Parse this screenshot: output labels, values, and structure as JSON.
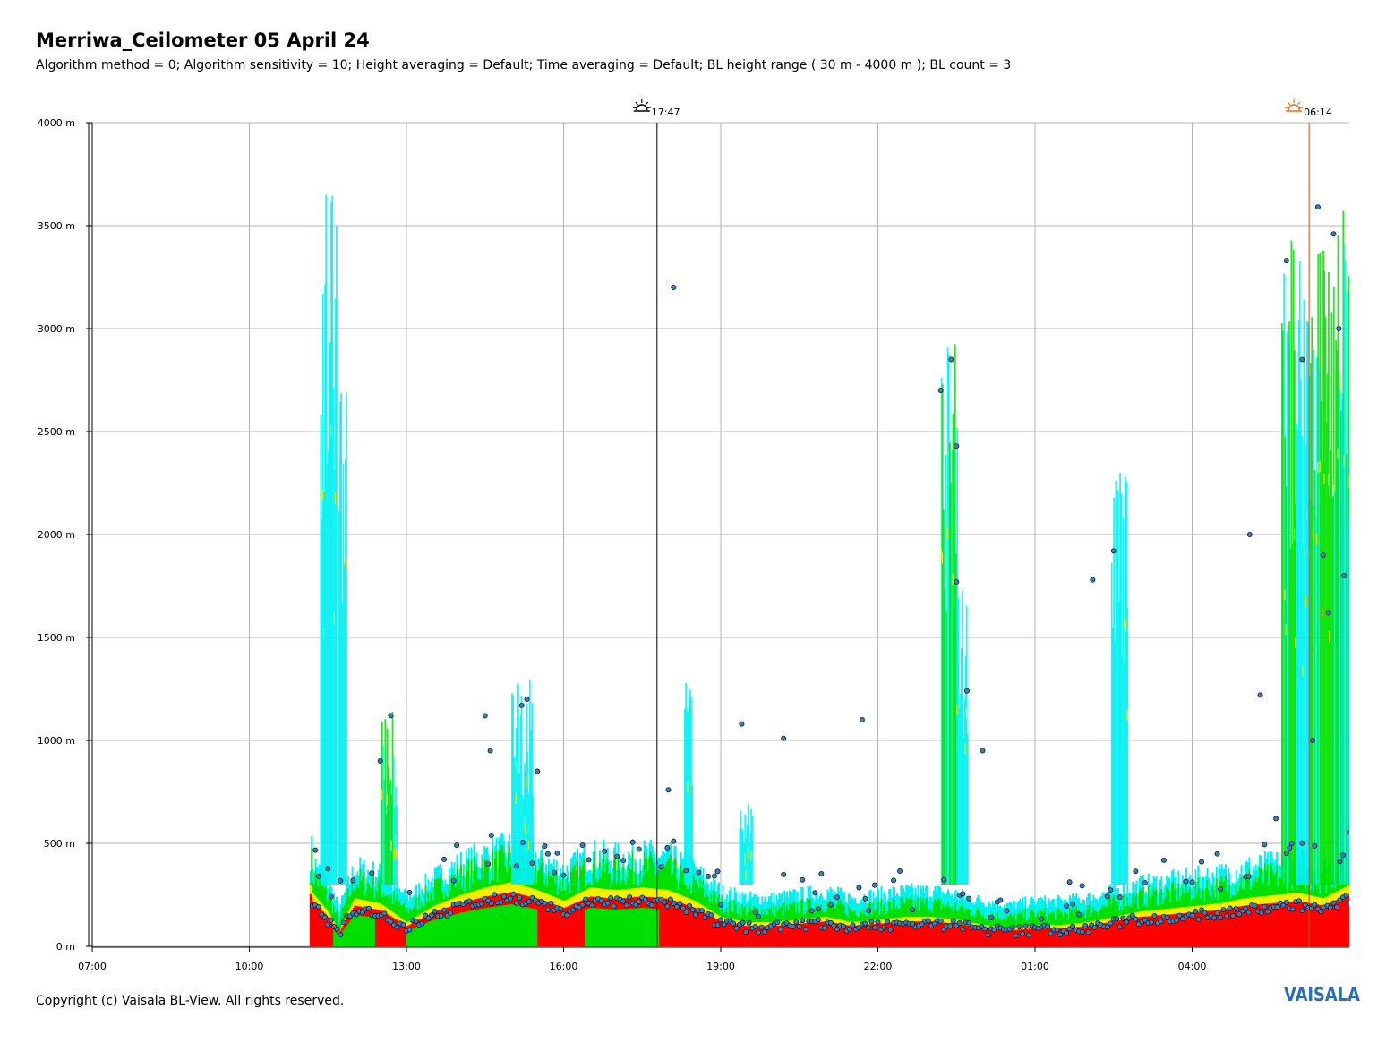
{
  "header": {
    "title": "Merriwa_Ceilometer 05 April 24",
    "subtitle": "Algorithm method = 0; Algorithm sensitivity = 10; Height averaging = Default; Time averaging = Default; BL height range ( 30 m - 4000 m ); BL count = 3"
  },
  "footer": {
    "copyright": "Copyright (c) Vaisala BL-View. All rights reserved.",
    "logo": "VAISALA"
  },
  "chart_data": {
    "type": "heatmap",
    "title": "Merriwa_Ceilometer 05 April 24",
    "xlabel": "",
    "ylabel": "",
    "x_range_hours": [
      7.0,
      31.0
    ],
    "x_ticks": [
      "07:00",
      "10:00",
      "13:00",
      "16:00",
      "19:00",
      "22:00",
      "01:00",
      "04:00"
    ],
    "y_ticks": [
      "0 m",
      "500 m",
      "1000 m",
      "1500 m",
      "2000 m",
      "2500 m",
      "3000 m",
      "3500 m",
      "4000 m"
    ],
    "ylim": [
      0,
      4000
    ],
    "grid": true,
    "colors": {
      "strong": "#ff0000",
      "high": "#ffb000",
      "mid": "#f0f000",
      "low": "#00e000",
      "weak": "#00f0f0",
      "sunset_line": "#000000",
      "sunrise_line": "#c05010",
      "marker_fill": "#3a7fb8"
    },
    "events": [
      {
        "name": "sunset",
        "time": "17:47",
        "hour": 17.783,
        "icon": "sunset-icon"
      },
      {
        "name": "sunrise",
        "time": "06:14",
        "hour": 30.233,
        "icon": "sunrise-icon"
      }
    ],
    "boundary_layer_height_m": [
      {
        "t": 11.2,
        "h": 200
      },
      {
        "t": 11.5,
        "h": 130
      },
      {
        "t": 11.7,
        "h": 60
      },
      {
        "t": 12.0,
        "h": 180
      },
      {
        "t": 12.5,
        "h": 160
      },
      {
        "t": 13.0,
        "h": 90
      },
      {
        "t": 13.5,
        "h": 150
      },
      {
        "t": 14.0,
        "h": 190
      },
      {
        "t": 14.5,
        "h": 220
      },
      {
        "t": 15.0,
        "h": 240
      },
      {
        "t": 15.5,
        "h": 210
      },
      {
        "t": 16.0,
        "h": 170
      },
      {
        "t": 16.5,
        "h": 220
      },
      {
        "t": 17.0,
        "h": 210
      },
      {
        "t": 17.5,
        "h": 220
      },
      {
        "t": 18.0,
        "h": 210
      },
      {
        "t": 18.5,
        "h": 170
      },
      {
        "t": 19.0,
        "h": 110
      },
      {
        "t": 19.5,
        "h": 90
      },
      {
        "t": 20.0,
        "h": 90
      },
      {
        "t": 20.5,
        "h": 100
      },
      {
        "t": 21.0,
        "h": 110
      },
      {
        "t": 21.5,
        "h": 90
      },
      {
        "t": 22.0,
        "h": 100
      },
      {
        "t": 22.5,
        "h": 110
      },
      {
        "t": 23.0,
        "h": 110
      },
      {
        "t": 23.5,
        "h": 100
      },
      {
        "t": 24.0,
        "h": 80
      },
      {
        "t": 24.5,
        "h": 70
      },
      {
        "t": 25.0,
        "h": 80
      },
      {
        "t": 25.5,
        "h": 80
      },
      {
        "t": 26.0,
        "h": 90
      },
      {
        "t": 26.5,
        "h": 110
      },
      {
        "t": 27.0,
        "h": 130
      },
      {
        "t": 27.5,
        "h": 140
      },
      {
        "t": 28.0,
        "h": 150
      },
      {
        "t": 28.5,
        "h": 160
      },
      {
        "t": 29.0,
        "h": 180
      },
      {
        "t": 29.5,
        "h": 190
      },
      {
        "t": 30.0,
        "h": 200
      },
      {
        "t": 30.5,
        "h": 180
      },
      {
        "t": 31.0,
        "h": 230
      }
    ],
    "upper_layer_points_m": [
      {
        "t": 12.5,
        "h": 900
      },
      {
        "t": 12.7,
        "h": 1120
      },
      {
        "t": 14.5,
        "h": 1120
      },
      {
        "t": 14.6,
        "h": 950
      },
      {
        "t": 15.3,
        "h": 1200
      },
      {
        "t": 15.5,
        "h": 850
      },
      {
        "t": 15.2,
        "h": 1170
      },
      {
        "t": 18.1,
        "h": 3200
      },
      {
        "t": 18.0,
        "h": 760
      },
      {
        "t": 19.4,
        "h": 1080
      },
      {
        "t": 20.2,
        "h": 1010
      },
      {
        "t": 21.7,
        "h": 1100
      },
      {
        "t": 23.2,
        "h": 2700
      },
      {
        "t": 23.4,
        "h": 2850
      },
      {
        "t": 23.5,
        "h": 2430
      },
      {
        "t": 23.5,
        "h": 1770
      },
      {
        "t": 23.7,
        "h": 1240
      },
      {
        "t": 24.0,
        "h": 950
      },
      {
        "t": 26.1,
        "h": 1780
      },
      {
        "t": 26.5,
        "h": 1920
      },
      {
        "t": 29.1,
        "h": 2000
      },
      {
        "t": 29.3,
        "h": 1220
      },
      {
        "t": 29.8,
        "h": 3330
      },
      {
        "t": 30.1,
        "h": 2850
      },
      {
        "t": 30.4,
        "h": 3590
      },
      {
        "t": 30.7,
        "h": 3460
      },
      {
        "t": 30.8,
        "h": 3000
      },
      {
        "t": 30.5,
        "h": 1900
      },
      {
        "t": 30.9,
        "h": 1800
      },
      {
        "t": 30.3,
        "h": 1000
      },
      {
        "t": 29.9,
        "h": 500
      },
      {
        "t": 29.6,
        "h": 620
      },
      {
        "t": 30.6,
        "h": 1620
      }
    ]
  }
}
